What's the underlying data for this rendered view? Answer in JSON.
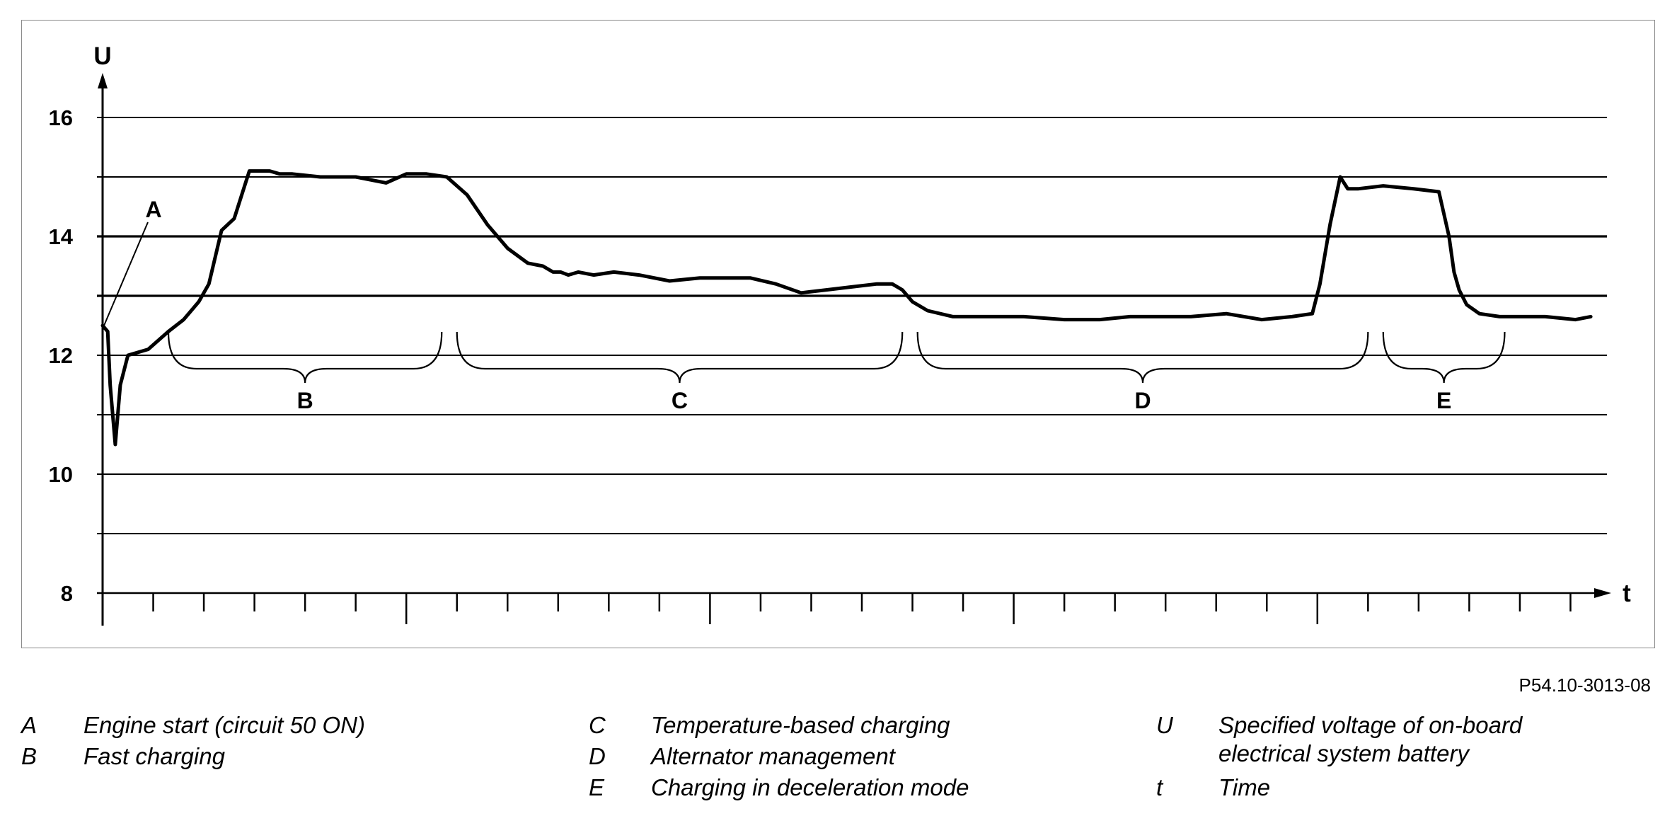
{
  "chart_data": {
    "type": "line",
    "title": "",
    "ylabel": "U",
    "xlabel": "t",
    "ylim": [
      8,
      17
    ],
    "yticks": [
      16,
      14,
      12,
      10,
      8
    ],
    "grid": true,
    "series": [
      {
        "name": "",
        "x": [
          0,
          0.1,
          0.15,
          0.25,
          0.35,
          0.5,
          0.9,
          1.3,
          1.6,
          1.9,
          2.1,
          2.35,
          2.6,
          2.9,
          3.1,
          3.3,
          3.5,
          3.75,
          4.3,
          5.0,
          5.6,
          6.0,
          6.4,
          6.8,
          7.2,
          7.6,
          8.0,
          8.4,
          8.7,
          8.9,
          9.05,
          9.2,
          9.4,
          9.7,
          10.1,
          10.6,
          11.2,
          11.8,
          12.3,
          12.8,
          13.3,
          13.8,
          14.3,
          14.8,
          15.3,
          15.6,
          15.8,
          16.0,
          16.3,
          16.8,
          17.5,
          18.2,
          19.0,
          19.7,
          20.3,
          20.9,
          21.5,
          22.2,
          22.9,
          23.5,
          23.9,
          24.05,
          24.25,
          24.45,
          24.6,
          24.8,
          25.3,
          25.9,
          26.4,
          26.6,
          26.7,
          26.8,
          26.95,
          27.2,
          27.6,
          28.0,
          28.5,
          29.1,
          29.4
        ],
        "values": [
          12.5,
          12.4,
          11.5,
          10.5,
          11.5,
          12.0,
          12.1,
          12.4,
          12.6,
          12.9,
          13.2,
          14.1,
          14.3,
          15.1,
          15.1,
          15.1,
          15.05,
          15.05,
          15.0,
          15.0,
          14.9,
          15.05,
          15.05,
          15.0,
          14.7,
          14.2,
          13.8,
          13.55,
          13.5,
          13.4,
          13.4,
          13.35,
          13.4,
          13.35,
          13.4,
          13.35,
          13.25,
          13.3,
          13.3,
          13.3,
          13.2,
          13.05,
          13.1,
          13.15,
          13.2,
          13.2,
          13.1,
          12.9,
          12.75,
          12.65,
          12.65,
          12.65,
          12.6,
          12.6,
          12.65,
          12.65,
          12.65,
          12.7,
          12.6,
          12.65,
          12.7,
          13.2,
          14.2,
          15.0,
          14.8,
          14.8,
          14.85,
          14.8,
          14.75,
          14.0,
          13.4,
          13.1,
          12.85,
          12.7,
          12.65,
          12.65,
          12.65,
          12.6,
          12.65
        ]
      }
    ],
    "annotations": [
      {
        "label": "A",
        "x": 0,
        "y": 12.5
      },
      {
        "label": "B",
        "x_start": 1.3,
        "x_end": 6.7
      },
      {
        "label": "C",
        "x_start": 7.0,
        "x_end": 15.8
      },
      {
        "label": "D",
        "x_start": 16.1,
        "x_end": 25.0
      },
      {
        "label": "E",
        "x_start": 25.3,
        "x_end": 27.7
      }
    ],
    "x_range": [
      0,
      30
    ],
    "colors": {
      "line": "#000000",
      "grid": "#000000",
      "frame": "#8a8a8a"
    }
  },
  "figure_id": "P54.10-3013-08",
  "legend": [
    {
      "key": "A",
      "text": "Engine start (circuit 50 ON)"
    },
    {
      "key": "B",
      "text": "Fast charging"
    },
    {
      "key": "C",
      "text": "Temperature-based charging"
    },
    {
      "key": "D",
      "text": "Alternator management"
    },
    {
      "key": "E",
      "text": "Charging in deceleration mode"
    },
    {
      "key": "U",
      "text": "Specified voltage of on-board electrical system battery"
    },
    {
      "key": "t",
      "text": "Time"
    }
  ]
}
